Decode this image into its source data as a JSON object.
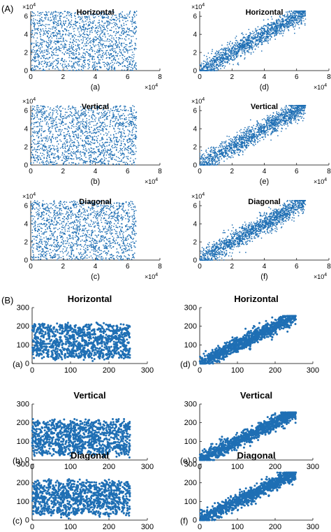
{
  "figure": {
    "section_a_label": "(A)",
    "section_b_label": "(B)",
    "point_color": "#1f6fb4"
  },
  "chart_data": [
    {
      "id": "A-a",
      "section": "A",
      "type": "scatter",
      "title": "Horizontal",
      "caption": "(a)",
      "distribution": "uniform",
      "n": 1600,
      "x_range": [
        0,
        65536
      ],
      "y_range": [
        0,
        65536
      ],
      "xlim": [
        0,
        80000
      ],
      "ylim": [
        0,
        65536
      ],
      "xticks": [
        0,
        20000,
        40000,
        60000,
        80000
      ],
      "xtick_labels": [
        "0",
        "2",
        "4",
        "6",
        "8"
      ],
      "yticks": [
        0,
        20000,
        40000,
        60000
      ],
      "ytick_labels": [
        "0",
        "2",
        "4",
        "6"
      ],
      "x_exponent": "×10",
      "x_exponent_power": "4",
      "y_exponent": "×10",
      "y_exponent_power": "4",
      "caption_below": true
    },
    {
      "id": "A-d",
      "section": "A",
      "type": "scatter",
      "title": "Horizontal",
      "caption": "(d)",
      "distribution": "correlated",
      "n": 1600,
      "x_range": [
        0,
        65536
      ],
      "y_range": [
        0,
        65536
      ],
      "xlim": [
        0,
        80000
      ],
      "ylim": [
        0,
        65536
      ],
      "xticks": [
        0,
        20000,
        40000,
        60000,
        80000
      ],
      "xtick_labels": [
        "0",
        "2",
        "4",
        "6",
        "8"
      ],
      "yticks": [
        0,
        20000,
        40000,
        60000
      ],
      "ytick_labels": [
        "0",
        "2",
        "4",
        "6"
      ],
      "x_exponent": "×10",
      "x_exponent_power": "4",
      "y_exponent": "×10",
      "y_exponent_power": "4",
      "caption_below": true
    },
    {
      "id": "A-b",
      "section": "A",
      "type": "scatter",
      "title": "Vertical",
      "caption": "(b)",
      "distribution": "uniform",
      "n": 1600,
      "x_range": [
        0,
        65536
      ],
      "y_range": [
        0,
        65536
      ],
      "xlim": [
        0,
        80000
      ],
      "ylim": [
        0,
        65536
      ],
      "xticks": [
        0,
        20000,
        40000,
        60000,
        80000
      ],
      "xtick_labels": [
        "0",
        "2",
        "4",
        "6",
        "8"
      ],
      "yticks": [
        0,
        20000,
        40000,
        60000
      ],
      "ytick_labels": [
        "0",
        "2",
        "4",
        "6"
      ],
      "x_exponent": "×10",
      "x_exponent_power": "4",
      "y_exponent": "×10",
      "y_exponent_power": "4",
      "caption_below": true
    },
    {
      "id": "A-e",
      "section": "A",
      "type": "scatter",
      "title": "Vertical",
      "caption": "(e)",
      "distribution": "correlated",
      "n": 1600,
      "x_range": [
        0,
        65536
      ],
      "y_range": [
        0,
        65536
      ],
      "xlim": [
        0,
        80000
      ],
      "ylim": [
        0,
        65536
      ],
      "xticks": [
        0,
        20000,
        40000,
        60000,
        80000
      ],
      "xtick_labels": [
        "0",
        "2",
        "4",
        "6",
        "8"
      ],
      "yticks": [
        0,
        20000,
        40000,
        60000
      ],
      "ytick_labels": [
        "0",
        "2",
        "4",
        "6"
      ],
      "x_exponent": "×10",
      "x_exponent_power": "4",
      "y_exponent": "×10",
      "y_exponent_power": "4",
      "caption_below": true
    },
    {
      "id": "A-c",
      "section": "A",
      "type": "scatter",
      "title": "Diagonal",
      "caption": "(c)",
      "distribution": "uniform",
      "n": 1600,
      "x_range": [
        0,
        65536
      ],
      "y_range": [
        0,
        65536
      ],
      "xlim": [
        0,
        80000
      ],
      "ylim": [
        0,
        65536
      ],
      "xticks": [
        0,
        20000,
        40000,
        60000,
        80000
      ],
      "xtick_labels": [
        "0",
        "2",
        "4",
        "6",
        "8"
      ],
      "yticks": [
        0,
        20000,
        40000,
        60000
      ],
      "ytick_labels": [
        "0",
        "2",
        "4",
        "6"
      ],
      "x_exponent": "×10",
      "x_exponent_power": "4",
      "y_exponent": "×10",
      "y_exponent_power": "4",
      "caption_below": true
    },
    {
      "id": "A-f",
      "section": "A",
      "type": "scatter",
      "title": "Diagonal",
      "caption": "(f)",
      "distribution": "correlated",
      "n": 1600,
      "x_range": [
        0,
        65536
      ],
      "y_range": [
        0,
        65536
      ],
      "xlim": [
        0,
        80000
      ],
      "ylim": [
        0,
        65536
      ],
      "xticks": [
        0,
        20000,
        40000,
        60000,
        80000
      ],
      "xtick_labels": [
        "0",
        "2",
        "4",
        "6",
        "8"
      ],
      "yticks": [
        0,
        20000,
        40000,
        60000
      ],
      "ytick_labels": [
        "0",
        "2",
        "4",
        "6"
      ],
      "x_exponent": "×10",
      "x_exponent_power": "4",
      "y_exponent": "×10",
      "y_exponent_power": "4",
      "caption_below": true
    },
    {
      "id": "B-a",
      "section": "B",
      "type": "scatter",
      "title": "Horizontal",
      "caption": "(a)",
      "distribution": "uniform",
      "n": 1100,
      "x_range": [
        0,
        255
      ],
      "y_range": [
        0,
        255
      ],
      "xlim": [
        0,
        300
      ],
      "ylim": [
        0,
        300
      ],
      "xticks": [
        0,
        100,
        200,
        300
      ],
      "xtick_labels": [
        "0",
        "100",
        "200",
        "300"
      ],
      "yticks": [
        0,
        100,
        200,
        300
      ],
      "ytick_labels": [
        "0",
        "100",
        "200",
        "300"
      ],
      "caption_below": false
    },
    {
      "id": "B-d",
      "section": "B",
      "type": "scatter",
      "title": "Horizontal",
      "caption": "(d)",
      "distribution": "correlated",
      "n": 1100,
      "x_range": [
        0,
        255
      ],
      "y_range": [
        0,
        255
      ],
      "xlim": [
        0,
        300
      ],
      "ylim": [
        0,
        300
      ],
      "xticks": [
        0,
        100,
        200,
        300
      ],
      "xtick_labels": [
        "0",
        "100",
        "200",
        "300"
      ],
      "yticks": [
        0,
        100,
        200,
        300
      ],
      "ytick_labels": [
        "0",
        "100",
        "200",
        "300"
      ],
      "caption_below": false
    },
    {
      "id": "B-b",
      "section": "B",
      "type": "scatter",
      "title": "Vertical",
      "caption": "(b)",
      "distribution": "uniform",
      "n": 1100,
      "x_range": [
        0,
        255
      ],
      "y_range": [
        0,
        255
      ],
      "xlim": [
        0,
        300
      ],
      "ylim": [
        0,
        300
      ],
      "xticks": [
        0,
        100,
        200,
        300
      ],
      "xtick_labels": [
        "0",
        "100",
        "200",
        "300"
      ],
      "yticks": [
        0,
        100,
        200,
        300
      ],
      "ytick_labels": [
        "0",
        "100",
        "200",
        "300"
      ],
      "caption_below": false
    },
    {
      "id": "B-e",
      "section": "B",
      "type": "scatter",
      "title": "Vertical",
      "caption": "(e)",
      "distribution": "correlated",
      "n": 1100,
      "x_range": [
        0,
        255
      ],
      "y_range": [
        0,
        255
      ],
      "xlim": [
        0,
        300
      ],
      "ylim": [
        0,
        300
      ],
      "xticks": [
        0,
        100,
        200,
        300
      ],
      "xtick_labels": [
        "0",
        "100",
        "200",
        "300"
      ],
      "yticks": [
        0,
        100,
        200,
        300
      ],
      "ytick_labels": [
        "0",
        "100",
        "200",
        "300"
      ],
      "caption_below": false
    },
    {
      "id": "B-c",
      "section": "B",
      "type": "scatter",
      "title": "Diagonal",
      "caption": "(c)",
      "distribution": "uniform",
      "n": 1100,
      "x_range": [
        0,
        255
      ],
      "y_range": [
        0,
        255
      ],
      "xlim": [
        0,
        300
      ],
      "ylim": [
        0,
        300
      ],
      "xticks": [
        0,
        100,
        200,
        300
      ],
      "xtick_labels": [
        "0",
        "100",
        "200",
        "300"
      ],
      "yticks": [
        0,
        100,
        200,
        300
      ],
      "ytick_labels": [
        "0",
        "100",
        "200",
        "300"
      ],
      "caption_below": false
    },
    {
      "id": "B-f",
      "section": "B",
      "type": "scatter",
      "title": "Diagonal",
      "caption": "(f)",
      "distribution": "correlated",
      "n": 1100,
      "x_range": [
        0,
        255
      ],
      "y_range": [
        0,
        255
      ],
      "xlim": [
        0,
        300
      ],
      "ylim": [
        0,
        300
      ],
      "xticks": [
        0,
        100,
        200,
        300
      ],
      "xtick_labels": [
        "0",
        "100",
        "200",
        "300"
      ],
      "yticks": [
        0,
        100,
        200,
        300
      ],
      "ytick_labels": [
        "0",
        "100",
        "200",
        "300"
      ],
      "caption_below": false
    }
  ]
}
